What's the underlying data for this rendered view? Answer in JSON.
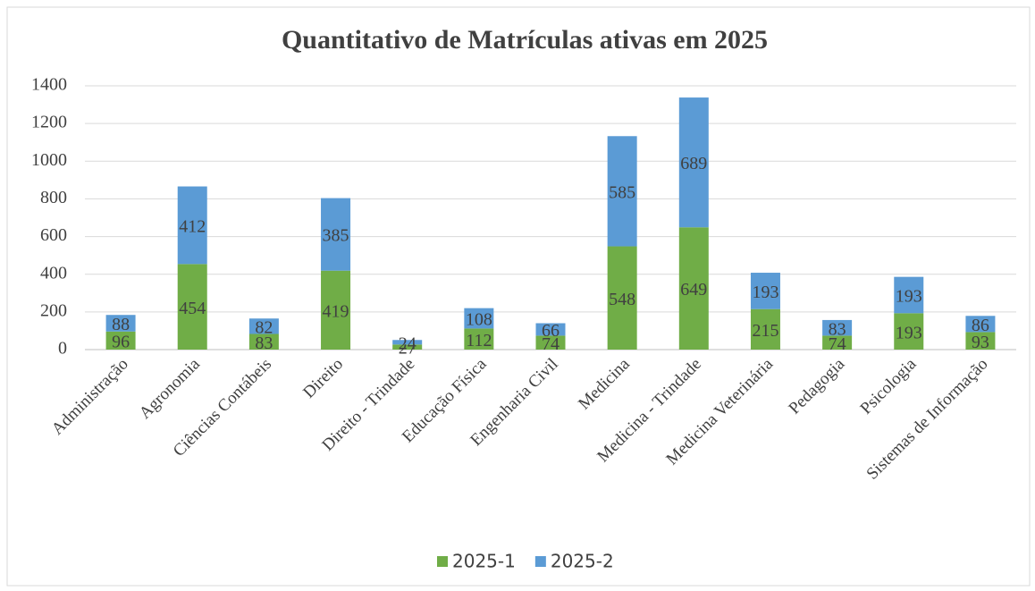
{
  "chart_data": {
    "type": "bar",
    "stacked": true,
    "title": "Quantitativo de Matrículas ativas em 2025",
    "categories": [
      "Administração",
      "Agronomia",
      "Ciências Contábeis",
      "Direito",
      "Direito - Trindade",
      "Educação Física",
      "Engenharia Civil",
      "Medicina",
      "Medicina - Trindade",
      "Medicina Veterinária",
      "Pedagogia",
      "Psicologia",
      "Sistemas de Informação"
    ],
    "series": [
      {
        "name": "2025-1",
        "color": "#70ad47",
        "values": [
          96,
          454,
          83,
          419,
          27,
          112,
          74,
          548,
          649,
          215,
          74,
          193,
          93
        ]
      },
      {
        "name": "2025-2",
        "color": "#5b9bd5",
        "values": [
          88,
          412,
          82,
          385,
          24,
          108,
          66,
          585,
          689,
          193,
          83,
          193,
          86
        ]
      }
    ],
    "ylim": [
      0,
      1400
    ],
    "yticks": [
      0,
      200,
      400,
      600,
      800,
      1000,
      1200,
      1400
    ],
    "grid": true,
    "legend": "bottom"
  }
}
